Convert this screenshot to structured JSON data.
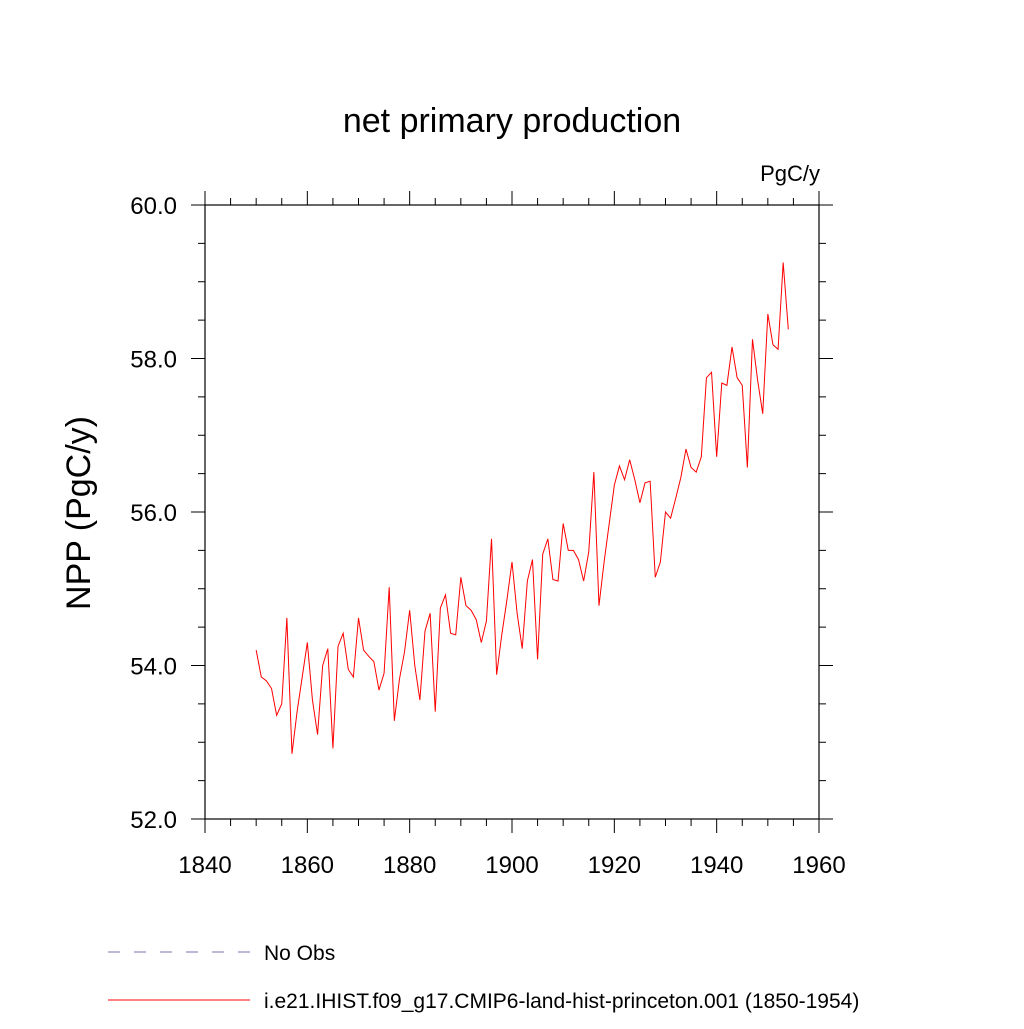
{
  "chart_data": {
    "type": "line",
    "title": "net primary production",
    "units_label": "PgC/y",
    "ylabel": "NPP  (PgC/y)",
    "xlabel": "",
    "xlim": [
      1840,
      1960
    ],
    "ylim": [
      52.0,
      60.0
    ],
    "x_ticks": [
      1840,
      1860,
      1880,
      1900,
      1920,
      1940,
      1960
    ],
    "x_tick_labels": [
      "1840",
      "1860",
      "1880",
      "1900",
      "1920",
      "1940",
      "1960"
    ],
    "y_ticks": [
      52.0,
      54.0,
      56.0,
      58.0,
      60.0
    ],
    "y_tick_labels": [
      "52.0",
      "54.0",
      "56.0",
      "58.0",
      "60.0"
    ],
    "y_minor_step": 0.5,
    "x_minor_step": 5,
    "grid": false,
    "legend_position": "bottom",
    "series": [
      {
        "name": "No Obs",
        "color": "#7b6fb0",
        "style": "dashed",
        "x": [],
        "y": []
      },
      {
        "name": "i.e21.IHIST.f09_g17.CMIP6-land-hist-princeton.001 (1850-1954)",
        "color": "#ff0000",
        "style": "solid",
        "x": [
          1850,
          1851,
          1852,
          1853,
          1854,
          1855,
          1856,
          1857,
          1858,
          1859,
          1860,
          1861,
          1862,
          1863,
          1864,
          1865,
          1866,
          1867,
          1868,
          1869,
          1870,
          1871,
          1872,
          1873,
          1874,
          1875,
          1876,
          1877,
          1878,
          1879,
          1880,
          1881,
          1882,
          1883,
          1884,
          1885,
          1886,
          1887,
          1888,
          1889,
          1890,
          1891,
          1892,
          1893,
          1894,
          1895,
          1896,
          1897,
          1898,
          1899,
          1900,
          1901,
          1902,
          1903,
          1904,
          1905,
          1906,
          1907,
          1908,
          1909,
          1910,
          1911,
          1912,
          1913,
          1914,
          1915,
          1916,
          1917,
          1918,
          1919,
          1920,
          1921,
          1922,
          1923,
          1924,
          1925,
          1926,
          1927,
          1928,
          1929,
          1930,
          1931,
          1932,
          1933,
          1934,
          1935,
          1936,
          1937,
          1938,
          1939,
          1940,
          1941,
          1942,
          1943,
          1944,
          1945,
          1946,
          1947,
          1948,
          1949,
          1950,
          1951,
          1952,
          1953,
          1954
        ],
        "y": [
          54.2,
          53.85,
          53.8,
          53.7,
          53.35,
          53.5,
          54.62,
          52.85,
          53.4,
          53.85,
          54.3,
          53.55,
          53.1,
          54.0,
          54.22,
          52.92,
          54.25,
          54.42,
          53.95,
          53.85,
          54.62,
          54.2,
          54.12,
          54.05,
          53.68,
          53.9,
          55.02,
          53.28,
          53.82,
          54.18,
          54.72,
          54.0,
          53.55,
          54.45,
          54.68,
          53.4,
          54.75,
          54.92,
          54.42,
          54.4,
          55.15,
          54.78,
          54.72,
          54.6,
          54.3,
          54.58,
          55.65,
          53.88,
          54.4,
          54.85,
          55.35,
          54.68,
          54.22,
          55.1,
          55.38,
          54.08,
          55.45,
          55.65,
          55.12,
          55.1,
          55.85,
          55.5,
          55.5,
          55.38,
          55.1,
          55.48,
          56.52,
          54.78,
          55.35,
          55.85,
          56.35,
          56.6,
          56.42,
          56.68,
          56.42,
          56.12,
          56.38,
          56.4,
          55.15,
          55.35,
          56.0,
          55.92,
          56.18,
          56.45,
          56.82,
          56.58,
          56.52,
          56.72,
          57.75,
          57.82,
          56.72,
          57.68,
          57.65,
          58.15,
          57.75,
          57.65,
          56.58,
          58.25,
          57.72,
          57.28,
          58.58,
          58.18,
          58.12,
          59.25,
          58.38
        ]
      }
    ]
  }
}
